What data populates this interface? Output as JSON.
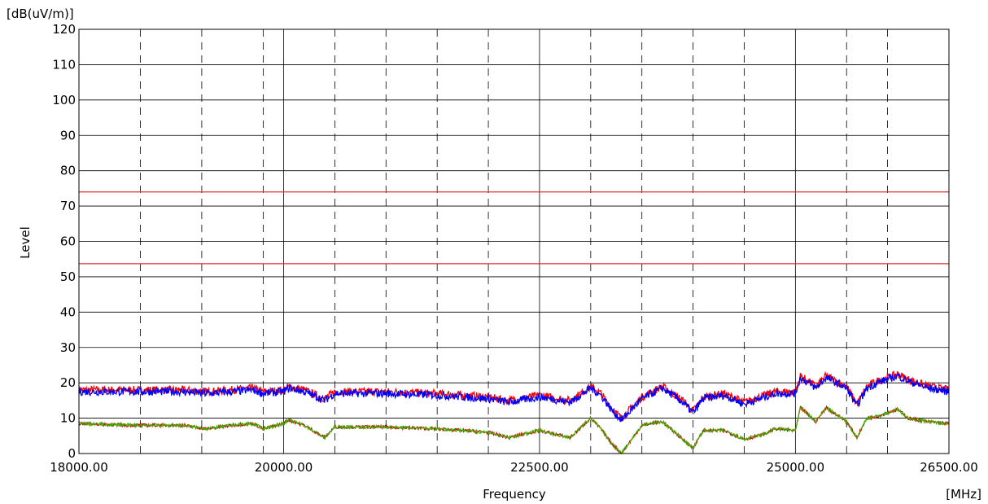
{
  "chart_data": {
    "type": "line",
    "ylabel": "Level",
    "yunit": "[dB(uV/m)]",
    "xlabel": "Frequency",
    "xunit": "[MHz]",
    "xlim": [
      18000,
      26500
    ],
    "ylim": [
      0,
      120
    ],
    "grid": true,
    "yticks": [
      "0",
      "10",
      "20",
      "30",
      "40",
      "50",
      "60",
      "70",
      "80",
      "90",
      "100",
      "110",
      "120"
    ],
    "xticks": [
      {
        "label": "18000.00",
        "value": 18000
      },
      {
        "label": "20000.00",
        "value": 20000
      },
      {
        "label": "22500.00",
        "value": 22500
      },
      {
        "label": "25000.00",
        "value": 25000
      },
      {
        "label": "26500.00",
        "value": 26500
      }
    ],
    "minor_grid_x": [
      18600,
      19200,
      19800,
      20500,
      21000,
      21500,
      22000,
      23000,
      23500,
      24000,
      24500,
      25500,
      25900
    ],
    "limit_lines": [
      {
        "value": 74,
        "color": "#e03030"
      },
      {
        "value": 53.7,
        "color": "#e03030"
      }
    ],
    "series": [
      {
        "color": "#ff0000",
        "x": [
          18000,
          18500,
          19000,
          19250,
          19500,
          19700,
          19800,
          20000,
          20050,
          20200,
          20400,
          20500,
          21000,
          21500,
          22000,
          22200,
          22500,
          22800,
          23000,
          23100,
          23200,
          23300,
          23500,
          23700,
          23900,
          24000,
          24100,
          24300,
          24500,
          24700,
          24800,
          25000,
          25050,
          25200,
          25300,
          25500,
          25600,
          25700,
          25800,
          26000,
          26100,
          26300,
          26500
        ],
        "y": [
          18,
          18,
          18,
          17.5,
          18,
          18.5,
          17.5,
          18,
          19,
          18,
          15.5,
          17.5,
          17.5,
          17,
          16,
          15,
          16.5,
          15,
          19,
          17,
          13,
          10,
          16,
          19,
          15,
          12,
          16,
          17,
          14.5,
          16.5,
          17.5,
          17.5,
          22,
          19,
          22,
          19,
          14,
          19,
          20.5,
          22.5,
          21,
          19,
          18
        ]
      },
      {
        "color": "#0000ff",
        "x": [
          18000,
          18500,
          19000,
          19250,
          19500,
          19700,
          19800,
          20000,
          20050,
          20200,
          20400,
          20500,
          21000,
          21500,
          22000,
          22200,
          22500,
          22800,
          23000,
          23100,
          23200,
          23300,
          23500,
          23700,
          23900,
          24000,
          24100,
          24300,
          24500,
          24700,
          24800,
          25000,
          25050,
          25200,
          25300,
          25500,
          25600,
          25700,
          25800,
          26000,
          26100,
          26300,
          26500
        ],
        "y": [
          17.5,
          17.5,
          17.5,
          17,
          17.5,
          18,
          17,
          17.5,
          18.5,
          17.5,
          15,
          17,
          17,
          16.5,
          15.5,
          14.5,
          16,
          14.5,
          18.5,
          16.5,
          12.5,
          9.5,
          15.5,
          18.5,
          14.5,
          11.5,
          15.5,
          16.5,
          14,
          16,
          17,
          17,
          21.5,
          18.5,
          21.5,
          18.5,
          13.5,
          18.5,
          20,
          22,
          20.5,
          18.5,
          17.5
        ]
      },
      {
        "color": "#cc0000",
        "x": [
          18000,
          18500,
          19000,
          19250,
          19500,
          19700,
          19800,
          20000,
          20050,
          20200,
          20400,
          20500,
          21000,
          21500,
          22000,
          22200,
          22500,
          22800,
          23000,
          23100,
          23200,
          23300,
          23500,
          23700,
          23900,
          24000,
          24100,
          24300,
          24500,
          24700,
          24800,
          25000,
          25050,
          25200,
          25300,
          25500,
          25600,
          25700,
          25800,
          26000,
          26100,
          26300,
          26500
        ],
        "y": [
          8.5,
          8,
          8,
          7,
          8,
          8.5,
          7,
          8.5,
          9.5,
          8,
          4.5,
          7.5,
          7.5,
          7,
          6,
          4.5,
          6.5,
          4.5,
          10,
          7,
          3,
          0,
          8,
          9,
          4,
          1.5,
          6.5,
          6.5,
          4,
          5.5,
          7,
          6.5,
          13,
          9,
          13,
          9,
          4.5,
          10,
          10.5,
          12.5,
          10,
          9,
          8.5
        ]
      },
      {
        "color": "#44aa00",
        "x": [
          18000,
          18500,
          19000,
          19250,
          19500,
          19700,
          19800,
          20000,
          20050,
          20200,
          20400,
          20500,
          21000,
          21500,
          22000,
          22200,
          22500,
          22800,
          23000,
          23100,
          23200,
          23300,
          23500,
          23700,
          23900,
          24000,
          24100,
          24300,
          24500,
          24700,
          24800,
          25000,
          25050,
          25200,
          25300,
          25500,
          25600,
          25700,
          25800,
          26000,
          26100,
          26300,
          26500
        ],
        "y": [
          8.5,
          8,
          8,
          7,
          8,
          8.5,
          7,
          8.5,
          9.5,
          8,
          4.5,
          7.5,
          7.5,
          7,
          6,
          4.5,
          6.5,
          4.5,
          10,
          7,
          3,
          0,
          8,
          9,
          4,
          1.5,
          6.5,
          6.5,
          4,
          5.5,
          7,
          6.5,
          13,
          9,
          13,
          9,
          4.5,
          10,
          10.5,
          12.5,
          10,
          9,
          8.5
        ]
      }
    ]
  }
}
